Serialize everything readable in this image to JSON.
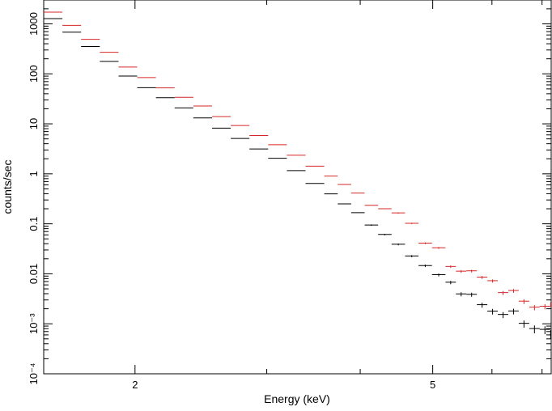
{
  "chart_data": {
    "type": "scatter",
    "xlabel": "Energy (keV)",
    "ylabel": "counts/sec",
    "xscale": "log",
    "yscale": "log",
    "xlim": [
      1.51,
      7.2
    ],
    "ylim": [
      0.0001,
      3000
    ],
    "grid": false,
    "x_ticks": [
      {
        "value": 2,
        "label": "2"
      },
      {
        "value": 5,
        "label": "5"
      }
    ],
    "y_ticks": [
      {
        "value": 0.0001,
        "label": "10⁻⁴"
      },
      {
        "value": 0.001,
        "label": "10⁻³"
      },
      {
        "value": 0.01,
        "label": "0.01"
      },
      {
        "value": 0.1,
        "label": "0.1"
      },
      {
        "value": 1,
        "label": "1"
      },
      {
        "value": 10,
        "label": "10"
      },
      {
        "value": 100,
        "label": "100"
      },
      {
        "value": 1000,
        "label": "1000"
      }
    ],
    "series": [
      {
        "color": "#d62728",
        "spectrum": [
          [
            1.51,
            2400
          ],
          [
            2.0,
            110
          ],
          [
            3.2,
            3.0
          ],
          [
            4.5,
            0.13
          ],
          [
            5.5,
            0.012
          ],
          [
            7.2,
            0.002
          ]
        ]
      },
      {
        "color": "#000000",
        "spectrum": [
          [
            1.51,
            1800
          ],
          [
            2.0,
            72
          ],
          [
            3.2,
            1.55
          ],
          [
            4.5,
            0.045
          ],
          [
            5.5,
            0.0045
          ],
          [
            7.2,
            0.0006
          ]
        ]
      }
    ]
  }
}
